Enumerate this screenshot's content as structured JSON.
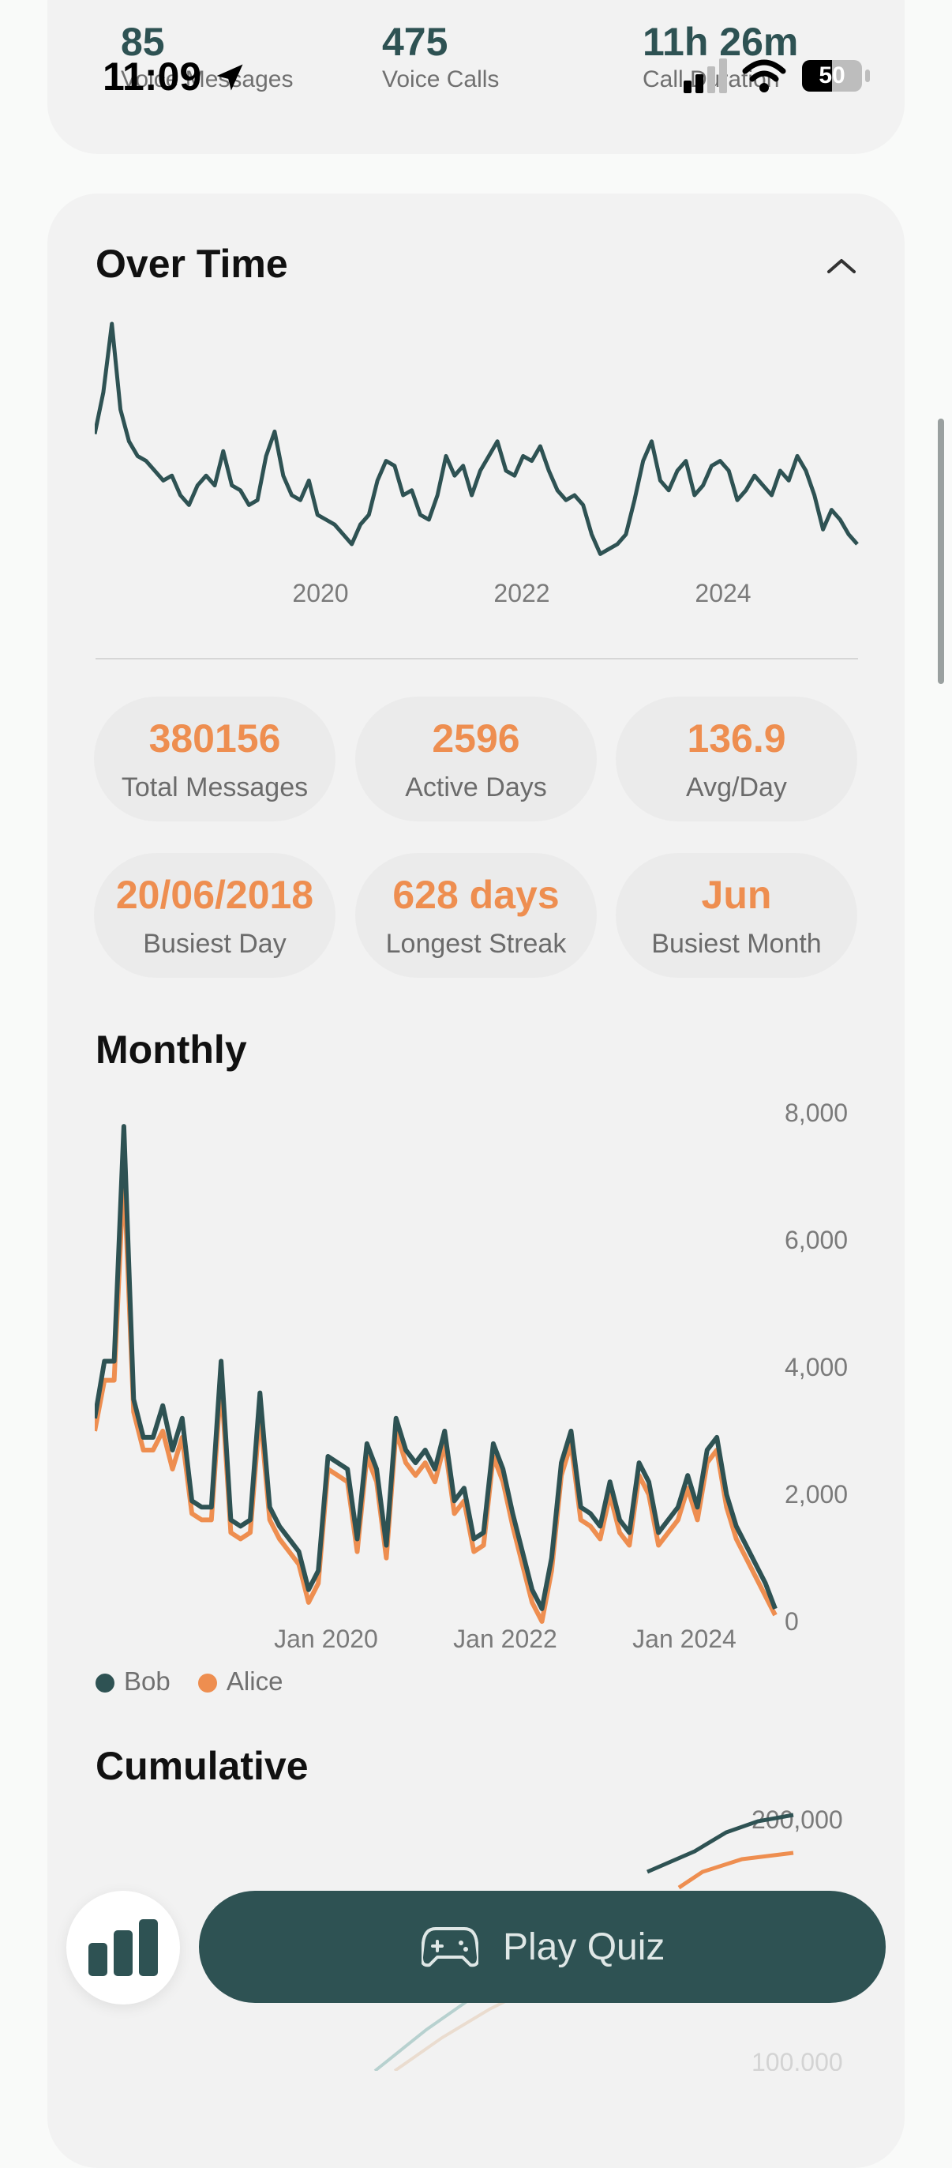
{
  "status_bar": {
    "time": "11:09",
    "battery": "50"
  },
  "top_stats": [
    {
      "value": "85",
      "label": "Voice Messages"
    },
    {
      "value": "475",
      "label": "Voice Calls"
    },
    {
      "value": "11h 26m",
      "label": "Call Duration"
    }
  ],
  "over_time": {
    "title": "Over Time",
    "x_labels": [
      "2020",
      "2022",
      "2024"
    ]
  },
  "stats": [
    {
      "value": "380156",
      "label": "Total Messages"
    },
    {
      "value": "2596",
      "label": "Active Days"
    },
    {
      "value": "136.9",
      "label": "Avg/Day"
    },
    {
      "value": "20/06/2018",
      "label": "Busiest Day"
    },
    {
      "value": "628 days",
      "label": "Longest Streak"
    },
    {
      "value": "Jun",
      "label": "Busiest Month"
    }
  ],
  "monthly": {
    "title": "Monthly",
    "legend": [
      {
        "name": "Bob",
        "color": "#2e5253"
      },
      {
        "name": "Alice",
        "color": "#ee8e50"
      }
    ]
  },
  "cumulative": {
    "title": "Cumulative",
    "y_labels": [
      "200,000",
      "100,000"
    ]
  },
  "bottom_bar": {
    "quiz_label": "Play Quiz"
  },
  "colors": {
    "accent": "#ee8e50",
    "primary": "#2e5253",
    "card": "#f2f2f2"
  },
  "chart_data": [
    {
      "type": "line",
      "title": "Over Time",
      "x_ticks": [
        "2020",
        "2022",
        "2024"
      ],
      "series": [
        {
          "values": [
            55,
            72,
            100,
            65,
            52,
            46,
            44,
            40,
            36,
            38,
            30,
            26,
            34,
            38,
            34,
            48,
            34,
            32,
            26,
            28,
            46,
            56,
            38,
            30,
            28,
            36,
            22,
            20,
            18,
            14,
            10,
            18,
            22,
            36,
            44,
            42,
            30,
            32,
            22,
            20,
            30,
            46,
            38,
            42,
            30,
            40,
            46,
            52,
            40,
            38,
            46,
            44,
            50,
            40,
            32,
            28,
            30,
            26,
            14,
            6,
            8,
            10,
            14,
            28,
            44,
            52,
            36,
            32,
            40,
            44,
            30,
            34,
            42,
            44,
            40,
            28,
            32,
            38,
            34,
            30,
            40,
            36,
            46,
            40,
            30,
            16,
            24,
            20,
            14,
            10
          ]
        }
      ]
    },
    {
      "type": "line",
      "title": "Monthly",
      "x_ticks": [
        "Jan 2020",
        "Jan 2022",
        "Jan 2024"
      ],
      "ylim": [
        0,
        8000
      ],
      "y_ticks": [
        "0",
        "2,000",
        "4,000",
        "6,000",
        "8,000"
      ],
      "series": [
        {
          "name": "Bob",
          "values": [
            3200,
            4100,
            4100,
            7800,
            3500,
            2900,
            2900,
            3400,
            2700,
            3200,
            1900,
            1800,
            1800,
            4100,
            1600,
            1500,
            1600,
            3600,
            1800,
            1500,
            1300,
            1100,
            500,
            800,
            2600,
            2500,
            2400,
            1300,
            2800,
            2400,
            1200,
            3200,
            2700,
            2500,
            2700,
            2400,
            3000,
            1900,
            2100,
            1300,
            1400,
            2800,
            2400,
            1700,
            1100,
            500,
            200,
            1000,
            2500,
            3000,
            1800,
            1700,
            1500,
            2200,
            1600,
            1400,
            2500,
            2200,
            1400,
            1600,
            1800,
            2300,
            1800,
            2700,
            2900,
            2000,
            1500,
            1200,
            900,
            600,
            200
          ]
        },
        {
          "name": "Alice",
          "values": [
            3000,
            3800,
            3800,
            7100,
            3300,
            2700,
            2700,
            3000,
            2400,
            2900,
            1700,
            1600,
            1600,
            3800,
            1400,
            1300,
            1400,
            3300,
            1600,
            1300,
            1100,
            900,
            300,
            600,
            2400,
            2300,
            2200,
            1100,
            2600,
            2200,
            1000,
            3000,
            2500,
            2300,
            2500,
            2200,
            2800,
            1700,
            1900,
            1100,
            1200,
            2600,
            2200,
            1500,
            900,
            300,
            0,
            800,
            2300,
            2800,
            1600,
            1500,
            1300,
            2000,
            1400,
            1200,
            2300,
            2000,
            1200,
            1400,
            1600,
            2100,
            1600,
            2500,
            2700,
            1800,
            1300,
            1000,
            700,
            400,
            100
          ]
        }
      ]
    },
    {
      "type": "line",
      "title": "Cumulative",
      "y_ticks": [
        "100,000",
        "200,000"
      ],
      "series": [
        {
          "name": "Bob",
          "values": [
            180000,
            185000,
            190000,
            196000,
            200000
          ]
        },
        {
          "name": "Alice",
          "values": [
            165000,
            170000,
            178000,
            184000,
            186000
          ]
        }
      ]
    }
  ]
}
